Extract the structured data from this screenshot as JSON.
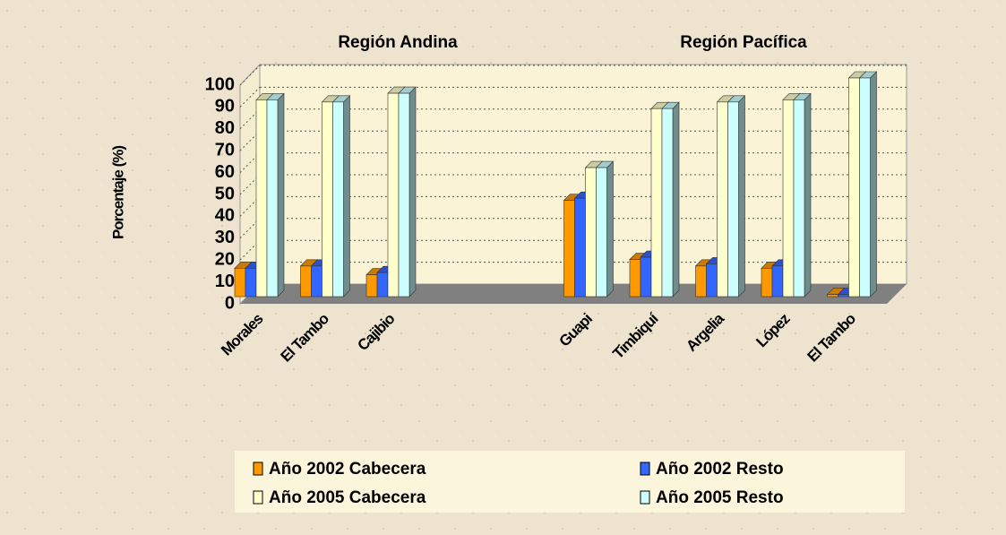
{
  "chart_data": {
    "type": "bar3d",
    "group_labels": [
      "Región Andina",
      "Región Pacífica"
    ],
    "y_label": "Porcentaje (%)",
    "categories": [
      "Morales",
      "El Tambo",
      "Cajibio",
      null,
      null,
      "Guapi",
      "Timbiquí",
      "Argelia",
      "López",
      "El Tambo"
    ],
    "series": [
      {
        "name": "Año 2002 Cabecera",
        "color": "#ff9900",
        "values": [
          13,
          14,
          10,
          null,
          null,
          44,
          17,
          14,
          13,
          1
        ]
      },
      {
        "name": "Año 2002 Resto",
        "color": "#3366ff",
        "values": [
          13,
          14,
          11,
          null,
          null,
          45,
          18,
          15,
          14,
          1
        ]
      },
      {
        "name": "Año 2005 Cabecera",
        "color": "#ffffcc",
        "values": [
          90,
          89,
          93,
          null,
          null,
          59,
          86,
          89,
          90,
          100
        ]
      },
      {
        "name": "Año 2005 Resto",
        "color": "#ccffff",
        "values": [
          90,
          89,
          93,
          null,
          null,
          59,
          86,
          89,
          90,
          100
        ]
      }
    ],
    "ylim": [
      0,
      100
    ],
    "yticks": [
      0,
      10,
      20,
      30,
      40,
      50,
      60,
      70,
      80,
      90,
      100
    ],
    "grid": true
  }
}
